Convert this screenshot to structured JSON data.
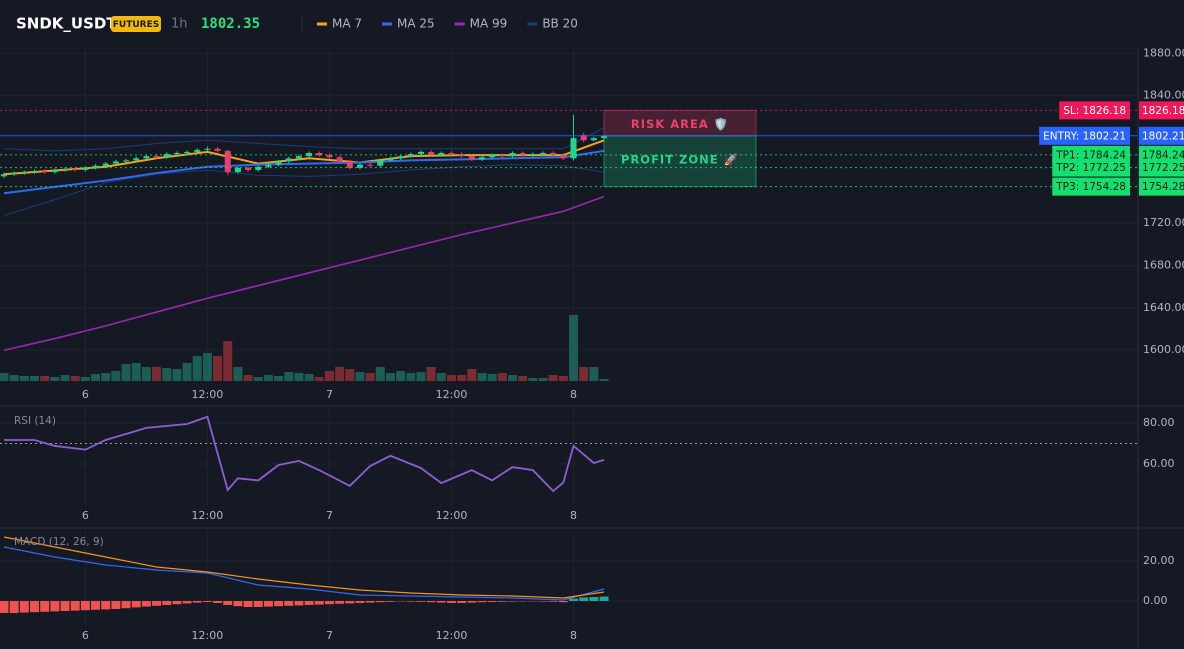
{
  "header": {
    "symbol": "SNDK_USDT",
    "badge": "FUTURES",
    "interval": "1h",
    "last_price": 1802.35
  },
  "chart_data": [
    {
      "type": "candlestick",
      "up_color": "#1fd68a",
      "down_color": "#f23b6a",
      "candles": [
        [
          1764,
          1767.5,
          1762.5,
          1766
        ],
        [
          1766,
          1768.5,
          1764.5,
          1767
        ],
        [
          1767,
          1769.5,
          1765.5,
          1768
        ],
        [
          1768,
          1770.5,
          1766.5,
          1769
        ],
        [
          1769,
          1770.5,
          1766.5,
          1768
        ],
        [
          1768,
          1771.5,
          1766.5,
          1770
        ],
        [
          1770,
          1772.5,
          1768.5,
          1771
        ],
        [
          1771,
          1772.5,
          1768.5,
          1770
        ],
        [
          1770,
          1773.5,
          1768.5,
          1772
        ],
        [
          1772,
          1775.5,
          1770.5,
          1774
        ],
        [
          1774,
          1777.5,
          1772.5,
          1776
        ],
        [
          1776,
          1779.5,
          1774.5,
          1778
        ],
        [
          1778,
          1780.5,
          1776.5,
          1779
        ],
        [
          1779,
          1782.5,
          1777.5,
          1781
        ],
        [
          1781,
          1784.5,
          1779.5,
          1783
        ],
        [
          1783,
          1784.5,
          1780.5,
          1782
        ],
        [
          1782,
          1786.5,
          1780.5,
          1785
        ],
        [
          1785,
          1787.5,
          1783.5,
          1786
        ],
        [
          1786,
          1788.5,
          1784.5,
          1787
        ],
        [
          1787,
          1790.5,
          1785.5,
          1789
        ],
        [
          1789,
          1792,
          1787.5,
          1790
        ],
        [
          1790,
          1791.5,
          1786.5,
          1788
        ],
        [
          1788,
          1789,
          1765,
          1768
        ],
        [
          1768,
          1773.5,
          1766.5,
          1772
        ],
        [
          1772,
          1773.5,
          1768.5,
          1770
        ],
        [
          1770,
          1774.5,
          1768.5,
          1773
        ],
        [
          1773,
          1776.5,
          1771.5,
          1775
        ],
        [
          1775,
          1779.5,
          1773.5,
          1778
        ],
        [
          1778,
          1782.5,
          1776.5,
          1781
        ],
        [
          1781,
          1784.5,
          1779.5,
          1783
        ],
        [
          1783,
          1787.5,
          1781.5,
          1786
        ],
        [
          1786,
          1787.5,
          1782.5,
          1784
        ],
        [
          1784,
          1785.5,
          1780.5,
          1782
        ],
        [
          1782,
          1783.5,
          1776.5,
          1778
        ],
        [
          1778,
          1779.5,
          1770.5,
          1772
        ],
        [
          1772,
          1776.5,
          1770.5,
          1775
        ],
        [
          1775,
          1776.5,
          1772.5,
          1774
        ],
        [
          1774,
          1780.5,
          1772.5,
          1779
        ],
        [
          1779,
          1782.5,
          1777.5,
          1781
        ],
        [
          1781,
          1784.5,
          1779.5,
          1783
        ],
        [
          1783,
          1786.5,
          1781.5,
          1785
        ],
        [
          1785,
          1788.5,
          1783.5,
          1787
        ],
        [
          1787,
          1788.5,
          1782.5,
          1784
        ],
        [
          1784,
          1787.5,
          1782.5,
          1786
        ],
        [
          1786,
          1787.5,
          1783.5,
          1785
        ],
        [
          1785,
          1786.5,
          1781.5,
          1783
        ],
        [
          1783,
          1784.5,
          1778.5,
          1780
        ],
        [
          1780,
          1783.5,
          1778.5,
          1782
        ],
        [
          1782,
          1785.5,
          1780.5,
          1784
        ],
        [
          1784,
          1785.5,
          1781.5,
          1783
        ],
        [
          1783,
          1787.5,
          1781.5,
          1786
        ],
        [
          1786,
          1787.5,
          1782.5,
          1784
        ],
        [
          1784,
          1786.5,
          1782.5,
          1785
        ],
        [
          1785,
          1787.5,
          1783.5,
          1786
        ],
        [
          1786,
          1787.5,
          1782.5,
          1784
        ],
        [
          1784,
          1785.5,
          1779.5,
          1781
        ],
        [
          1781,
          1822,
          1779,
          1800
        ],
        [
          1803,
          1805,
          1796,
          1798
        ],
        [
          1798,
          1801,
          1797,
          1800
        ],
        [
          1800,
          1803,
          1799,
          1802.35
        ]
      ],
      "volume": {
        "up_color": "#1b5e56",
        "down_color": "#7b2c33",
        "values": [
          8,
          6,
          5,
          5,
          5,
          4,
          6,
          5,
          4,
          7,
          8,
          10,
          17,
          18,
          14,
          14,
          13,
          12,
          18,
          25,
          28,
          25,
          40,
          14,
          6,
          4,
          6,
          5,
          9,
          8,
          7,
          4,
          10,
          14,
          12,
          9,
          8,
          14,
          8,
          10,
          8,
          9,
          14,
          8,
          6,
          6,
          12,
          8,
          7,
          8,
          6,
          5,
          3,
          3,
          6,
          5,
          66,
          14,
          14,
          2
        ]
      },
      "indicators": [
        {
          "name": "MA 7",
          "color": "#f7a21b",
          "x": [
            0,
            5,
            10,
            15,
            20,
            25,
            30,
            35,
            40,
            45,
            50,
            55,
            59
          ],
          "values": [
            1766,
            1769.5,
            1773,
            1781,
            1787,
            1776,
            1781,
            1777,
            1783,
            1784,
            1784,
            1784,
            1798
          ]
        },
        {
          "name": "MA 25",
          "color": "#2f6bf0",
          "x": [
            0,
            5,
            10,
            15,
            20,
            25,
            30,
            35,
            40,
            45,
            50,
            55,
            59
          ],
          "values": [
            1748,
            1754,
            1760,
            1767,
            1773,
            1775,
            1776,
            1777,
            1779,
            1780,
            1781,
            1782,
            1788
          ]
        },
        {
          "name": "MA 99",
          "color": "#9c27b0",
          "x": [
            0,
            5,
            10,
            15,
            20,
            25,
            30,
            35,
            40,
            45,
            50,
            55,
            59
          ],
          "values": [
            1600,
            1611,
            1623,
            1636,
            1649,
            1661,
            1673,
            1685,
            1697,
            1709,
            1720,
            1731,
            1745
          ]
        },
        {
          "name": "BB 20",
          "color": "#1e3a78",
          "x": [
            0,
            5,
            10,
            15,
            20,
            25,
            30,
            35,
            40,
            45,
            50,
            55,
            59
          ],
          "upper": [
            1790,
            1788,
            1790,
            1795,
            1798,
            1795,
            1792,
            1790,
            1790,
            1790,
            1790,
            1790,
            1810
          ],
          "lower": [
            1727,
            1742,
            1758,
            1766,
            1770,
            1765,
            1764,
            1766,
            1770,
            1773,
            1775,
            1774,
            1768
          ]
        }
      ],
      "levels": [
        {
          "label": "SL: 1826.18",
          "price": 1826.18,
          "color": "#f0185a",
          "text_color": "#ffffff",
          "style": "dotted"
        },
        {
          "label": "ENTRY: 1802.21",
          "price": 1802.21,
          "color": "#2962ff",
          "text_color": "#ffffff",
          "style": "solid"
        },
        {
          "label": "TP1: 1784.24",
          "price": 1784.24,
          "color": "#13e06e",
          "text_color": "#0b1a12",
          "style": "dotted"
        },
        {
          "label": "TP2: 1772.25",
          "price": 1772.25,
          "color": "#13e06e",
          "text_color": "#0b1a12",
          "style": "dotted"
        },
        {
          "label": "TP3: 1754.28",
          "price": 1754.28,
          "color": "#13e06e",
          "text_color": "#0b1a12",
          "style": "dotted"
        }
      ],
      "zones": [
        {
          "label": "RISK AREA 🛡️",
          "color": "#f0406a"
        },
        {
          "label": "PROFIT ZONE 🚀",
          "color": "#20d68a"
        }
      ],
      "ylim": [
        1571,
        1885
      ],
      "yticks": [
        {
          "value": 1880,
          "label": "1880.00"
        },
        {
          "value": 1840,
          "label": "1840.00"
        },
        {
          "value": 1720,
          "label": "1720.00"
        },
        {
          "value": 1680,
          "label": "1680.00"
        },
        {
          "value": 1640,
          "label": "1640.00"
        },
        {
          "value": 1600,
          "label": "1600.00"
        }
      ],
      "xticks": [
        {
          "value": 8,
          "label": "6"
        },
        {
          "value": 20,
          "label": "12:00"
        },
        {
          "value": 32,
          "label": "7"
        },
        {
          "value": 44,
          "label": "12:00"
        },
        {
          "value": 56,
          "label": "8"
        }
      ]
    },
    {
      "type": "line",
      "title": "RSI (14)",
      "reference": 70,
      "series": [
        {
          "color": "#8d5fd3",
          "x": [
            0,
            3,
            5,
            8,
            10,
            14,
            18,
            20,
            22,
            23,
            25,
            27,
            29,
            31,
            34,
            36,
            38,
            41,
            43,
            46,
            48,
            50,
            52,
            54,
            55,
            56,
            58,
            59
          ],
          "values": [
            71.7,
            71.7,
            68.8,
            67,
            71.7,
            77.6,
            79.5,
            83,
            47.3,
            53,
            52,
            59.5,
            61.5,
            57,
            49.3,
            59,
            64,
            58,
            50.7,
            57,
            52,
            58.5,
            57,
            46.8,
            51,
            68.8,
            60.5,
            62
          ]
        }
      ],
      "ylim": [
        40,
        87.3
      ],
      "yticks": [
        {
          "value": 80,
          "label": "80.00"
        },
        {
          "value": 60,
          "label": "60.00"
        }
      ],
      "xticks": [
        {
          "value": 8,
          "label": "6"
        },
        {
          "value": 20,
          "label": "12:00"
        },
        {
          "value": 32,
          "label": "7"
        },
        {
          "value": 44,
          "label": "12:00"
        },
        {
          "value": 56,
          "label": "8"
        }
      ]
    },
    {
      "type": "macd",
      "title": "MACD (12, 26, 9)",
      "series": [
        {
          "color": "#2f6bf0",
          "x": [
            0,
            5,
            10,
            15,
            20,
            25,
            30,
            35,
            40,
            45,
            50,
            55,
            59
          ],
          "values": [
            27,
            22,
            18,
            15.5,
            14,
            8,
            6,
            3,
            2.5,
            2,
            1.5,
            0.5,
            6
          ]
        },
        {
          "color": "#f7931e",
          "x": [
            0,
            5,
            10,
            15,
            20,
            25,
            30,
            35,
            40,
            45,
            50,
            55,
            59
          ],
          "values": [
            32,
            27,
            22,
            17,
            14.5,
            11,
            8,
            5.5,
            4,
            3,
            2.5,
            1.5,
            4.5
          ]
        }
      ],
      "histogram": {
        "up_color": "#26a69a",
        "down_color": "#ef5350",
        "values": [
          -6,
          -6,
          -5.8,
          -5.6,
          -5.4,
          -5.2,
          -5,
          -4.8,
          -4.6,
          -4.4,
          -4.2,
          -4,
          -3.6,
          -3.2,
          -2.8,
          -2.4,
          -2,
          -1.6,
          -1.2,
          -0.8,
          -0.5,
          -1,
          -2,
          -2.6,
          -3,
          -3,
          -2.8,
          -2.6,
          -2.4,
          -2.2,
          -2,
          -1.8,
          -1.6,
          -1.4,
          -1.2,
          -1,
          -0.8,
          -0.6,
          -0.4,
          -0.2,
          -0.3,
          -0.4,
          -0.6,
          -0.8,
          -1,
          -1,
          -0.8,
          -0.6,
          -0.5,
          -0.4,
          -0.3,
          -0.2,
          -0.2,
          -0.3,
          -0.4,
          -0.6,
          1.2,
          1.8,
          2,
          2.2
        ]
      },
      "ylim": [
        -12,
        35.5
      ],
      "yticks": [
        {
          "value": 20,
          "label": "20.00"
        },
        {
          "value": 0,
          "label": "0.00"
        }
      ],
      "xticks": [
        {
          "value": 8,
          "label": "6"
        },
        {
          "value": 20,
          "label": "12:00"
        },
        {
          "value": 32,
          "label": "7"
        },
        {
          "value": 44,
          "label": "12:00"
        },
        {
          "value": 56,
          "label": "8"
        }
      ]
    }
  ]
}
